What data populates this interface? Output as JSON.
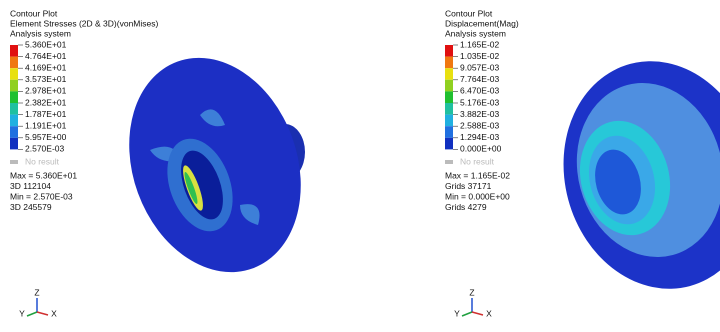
{
  "panels": [
    {
      "title": "Contour Plot",
      "subtitle": "Element Stresses (2D & 3D)(vonMises)",
      "system": "Analysis system",
      "legend": [
        "5.360E+01",
        "4.764E+01",
        "4.169E+01",
        "3.573E+01",
        "2.978E+01",
        "2.382E+01",
        "1.787E+01",
        "1.191E+01",
        "5.957E+00",
        "2.570E-03"
      ],
      "no_result": "No result",
      "stats": [
        "Max = 5.360E+01",
        "3D 112104",
        "Min = 2.570E-03",
        "3D 245579"
      ],
      "triad": [
        "Z",
        "Y",
        "X"
      ]
    },
    {
      "title": "Contour Plot",
      "subtitle": "Displacement(Mag)",
      "system": "Analysis system",
      "legend": [
        "1.165E-02",
        "1.035E-02",
        "9.057E-03",
        "7.764E-03",
        "6.470E-03",
        "5.176E-03",
        "3.882E-03",
        "2.588E-03",
        "1.294E-03",
        "0.000E+00"
      ],
      "no_result": "No result",
      "stats": [
        "Max = 1.165E-02",
        "Grids 37171",
        "Min = 0.000E+00",
        "Grids 4279"
      ],
      "triad": [
        "Z",
        "Y",
        "X"
      ]
    }
  ]
}
